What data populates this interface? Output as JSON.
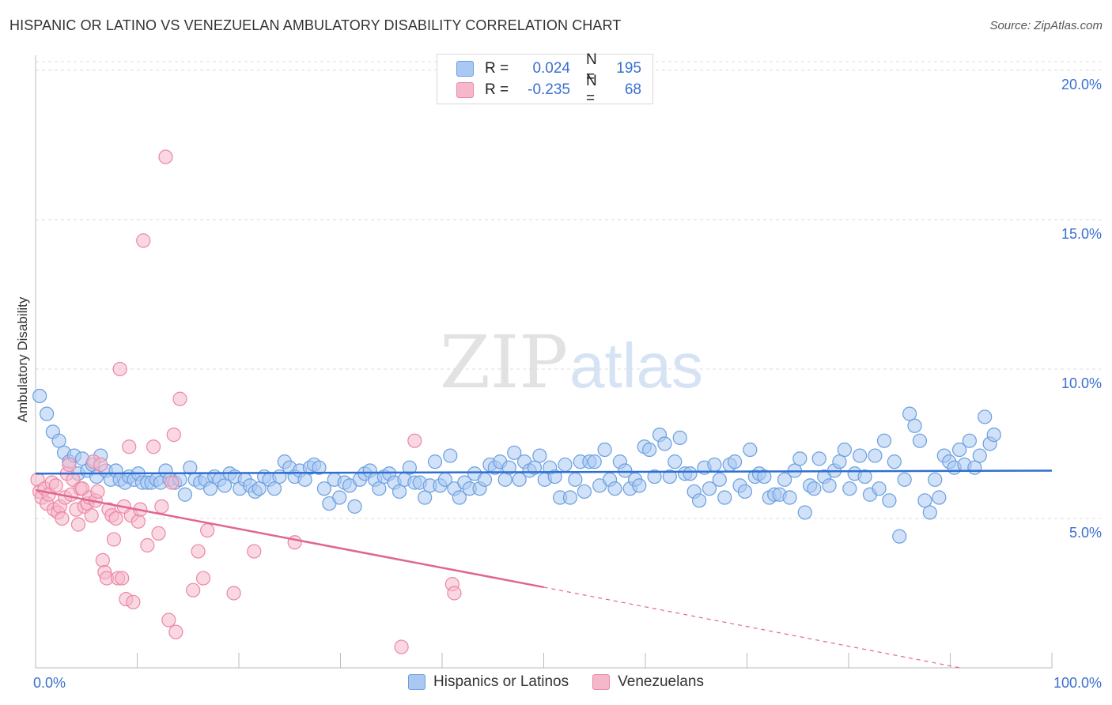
{
  "title": "HISPANIC OR LATINO VS VENEZUELAN AMBULATORY DISABILITY CORRELATION CHART",
  "source": "Source: ZipAtlas.com",
  "watermark": {
    "zip": "ZIP",
    "atlas": "atlas"
  },
  "legend": {
    "rows": [
      {
        "r_label": "R =",
        "r_value": "0.024",
        "n_label": "N =",
        "n_value": "195",
        "color": "#aac8f2"
      },
      {
        "r_label": "R =",
        "r_value": "-0.235",
        "n_label": "N =",
        "n_value": "68",
        "color": "#f5b8cb"
      }
    ]
  },
  "bottom_legend": [
    {
      "label": "Hispanics or Latinos",
      "color": "#aac8f2"
    },
    {
      "label": "Venezuelans",
      "color": "#f5b8cb"
    }
  ],
  "chart_data": {
    "type": "scatter",
    "title": "HISPANIC OR LATINO VS VENEZUELAN AMBULATORY DISABILITY CORRELATION CHART",
    "xlabel": "",
    "ylabel": "Ambulatory Disability",
    "xlim": [
      0,
      100
    ],
    "ylim": [
      0,
      20.5
    ],
    "x_tick_labels": [
      "0.0%",
      "100.0%"
    ],
    "y_ticks": [
      5,
      10,
      15,
      20
    ],
    "y_tick_labels": [
      "5.0%",
      "10.0%",
      "15.0%",
      "20.0%"
    ],
    "grid": "horizontal dashed",
    "legend_position": "top-center",
    "series": [
      {
        "name": "Hispanics or Latinos",
        "color": "#6a9fe0",
        "fill": "#aac8f2",
        "trend": {
          "x": [
            0,
            100
          ],
          "y": [
            6.5,
            6.6
          ],
          "style": "solid",
          "color": "#2f6fd0"
        },
        "points": [
          [
            0.4,
            9.1
          ],
          [
            1.1,
            8.5
          ],
          [
            1.7,
            7.9
          ],
          [
            2.3,
            7.6
          ],
          [
            2.8,
            7.2
          ],
          [
            3.3,
            6.9
          ],
          [
            3.8,
            7.1
          ],
          [
            4.2,
            6.5
          ],
          [
            4.6,
            7.0
          ],
          [
            5.1,
            6.6
          ],
          [
            5.6,
            6.8
          ],
          [
            6.0,
            6.4
          ],
          [
            6.4,
            7.1
          ],
          [
            6.9,
            6.6
          ],
          [
            7.4,
            6.3
          ],
          [
            7.9,
            6.6
          ],
          [
            8.3,
            6.3
          ],
          [
            8.8,
            6.2
          ],
          [
            9.2,
            6.4
          ],
          [
            9.7,
            6.3
          ],
          [
            10.1,
            6.5
          ],
          [
            10.5,
            6.2
          ],
          [
            11.0,
            6.2
          ],
          [
            11.4,
            6.2
          ],
          [
            11.9,
            6.3
          ],
          [
            12.3,
            6.2
          ],
          [
            12.8,
            6.6
          ],
          [
            13.2,
            6.3
          ],
          [
            13.7,
            6.2
          ],
          [
            14.2,
            6.3
          ],
          [
            14.7,
            5.8
          ],
          [
            15.2,
            6.7
          ],
          [
            15.7,
            6.3
          ],
          [
            16.2,
            6.2
          ],
          [
            16.7,
            6.3
          ],
          [
            17.2,
            6.0
          ],
          [
            17.6,
            6.4
          ],
          [
            18.1,
            6.3
          ],
          [
            18.6,
            6.1
          ],
          [
            19.1,
            6.5
          ],
          [
            19.6,
            6.4
          ],
          [
            20.1,
            6.0
          ],
          [
            20.6,
            6.3
          ],
          [
            21.1,
            6.1
          ],
          [
            21.6,
            5.9
          ],
          [
            22.0,
            6.0
          ],
          [
            22.5,
            6.4
          ],
          [
            23.0,
            6.3
          ],
          [
            23.5,
            6.0
          ],
          [
            24.0,
            6.4
          ],
          [
            24.5,
            6.9
          ],
          [
            25.0,
            6.7
          ],
          [
            25.5,
            6.4
          ],
          [
            26.0,
            6.6
          ],
          [
            26.5,
            6.3
          ],
          [
            27.0,
            6.7
          ],
          [
            27.4,
            6.8
          ],
          [
            27.9,
            6.7
          ],
          [
            28.4,
            6.0
          ],
          [
            28.9,
            5.5
          ],
          [
            29.4,
            6.3
          ],
          [
            29.9,
            5.7
          ],
          [
            30.4,
            6.2
          ],
          [
            30.9,
            6.1
          ],
          [
            31.4,
            5.4
          ],
          [
            31.9,
            6.3
          ],
          [
            32.4,
            6.5
          ],
          [
            32.9,
            6.6
          ],
          [
            33.4,
            6.3
          ],
          [
            33.8,
            6.0
          ],
          [
            34.3,
            6.4
          ],
          [
            34.8,
            6.5
          ],
          [
            35.3,
            6.2
          ],
          [
            35.8,
            5.9
          ],
          [
            36.3,
            6.3
          ],
          [
            36.8,
            6.7
          ],
          [
            37.3,
            6.2
          ],
          [
            37.8,
            6.2
          ],
          [
            38.3,
            5.7
          ],
          [
            38.8,
            6.1
          ],
          [
            39.3,
            6.9
          ],
          [
            39.8,
            6.1
          ],
          [
            40.3,
            6.3
          ],
          [
            40.8,
            7.1
          ],
          [
            41.2,
            6.0
          ],
          [
            41.7,
            5.7
          ],
          [
            42.2,
            6.2
          ],
          [
            42.7,
            6.0
          ],
          [
            43.2,
            6.5
          ],
          [
            43.7,
            6.0
          ],
          [
            44.2,
            6.3
          ],
          [
            44.7,
            6.8
          ],
          [
            45.2,
            6.7
          ],
          [
            45.7,
            6.9
          ],
          [
            46.2,
            6.3
          ],
          [
            46.6,
            6.7
          ],
          [
            47.1,
            7.2
          ],
          [
            47.6,
            6.3
          ],
          [
            48.1,
            6.9
          ],
          [
            48.6,
            6.6
          ],
          [
            49.1,
            6.7
          ],
          [
            49.6,
            7.1
          ],
          [
            50.1,
            6.3
          ],
          [
            50.6,
            6.7
          ],
          [
            51.1,
            6.4
          ],
          [
            51.6,
            5.7
          ],
          [
            52.1,
            6.8
          ],
          [
            52.6,
            5.7
          ],
          [
            53.1,
            6.3
          ],
          [
            53.6,
            6.9
          ],
          [
            54.0,
            5.9
          ],
          [
            54.5,
            6.9
          ],
          [
            55.0,
            6.9
          ],
          [
            55.5,
            6.1
          ],
          [
            56.0,
            7.3
          ],
          [
            56.5,
            6.3
          ],
          [
            57.0,
            6.0
          ],
          [
            57.5,
            6.9
          ],
          [
            58.0,
            6.6
          ],
          [
            58.5,
            6.0
          ],
          [
            59.0,
            6.3
          ],
          [
            59.4,
            6.1
          ],
          [
            59.9,
            7.4
          ],
          [
            60.4,
            7.3
          ],
          [
            60.9,
            6.4
          ],
          [
            61.4,
            7.8
          ],
          [
            61.9,
            7.5
          ],
          [
            62.4,
            6.4
          ],
          [
            62.9,
            6.9
          ],
          [
            63.4,
            7.7
          ],
          [
            63.9,
            6.5
          ],
          [
            64.4,
            6.5
          ],
          [
            64.8,
            5.9
          ],
          [
            65.3,
            5.6
          ],
          [
            65.8,
            6.7
          ],
          [
            66.3,
            6.0
          ],
          [
            66.8,
            6.8
          ],
          [
            67.3,
            6.3
          ],
          [
            67.8,
            5.7
          ],
          [
            68.3,
            6.8
          ],
          [
            68.8,
            6.9
          ],
          [
            69.3,
            6.1
          ],
          [
            69.8,
            5.9
          ],
          [
            70.3,
            7.3
          ],
          [
            70.8,
            6.4
          ],
          [
            71.2,
            6.5
          ],
          [
            71.7,
            6.4
          ],
          [
            72.2,
            5.7
          ],
          [
            72.7,
            5.8
          ],
          [
            73.2,
            5.8
          ],
          [
            73.7,
            6.3
          ],
          [
            74.2,
            5.7
          ],
          [
            74.7,
            6.6
          ],
          [
            75.2,
            7.0
          ],
          [
            75.7,
            5.2
          ],
          [
            76.2,
            6.1
          ],
          [
            76.6,
            6.0
          ],
          [
            77.1,
            7.0
          ],
          [
            77.6,
            6.4
          ],
          [
            78.1,
            6.1
          ],
          [
            78.6,
            6.6
          ],
          [
            79.1,
            6.9
          ],
          [
            79.6,
            7.3
          ],
          [
            80.1,
            6.0
          ],
          [
            80.6,
            6.5
          ],
          [
            81.1,
            7.1
          ],
          [
            81.6,
            6.4
          ],
          [
            82.1,
            5.8
          ],
          [
            82.6,
            7.1
          ],
          [
            83.0,
            6.0
          ],
          [
            83.5,
            7.6
          ],
          [
            84.0,
            5.6
          ],
          [
            84.5,
            6.9
          ],
          [
            85.0,
            4.4
          ],
          [
            85.5,
            6.3
          ],
          [
            86.0,
            8.5
          ],
          [
            86.5,
            8.1
          ],
          [
            87.0,
            7.6
          ],
          [
            87.5,
            5.6
          ],
          [
            88.0,
            5.2
          ],
          [
            88.5,
            6.3
          ],
          [
            88.9,
            5.7
          ],
          [
            89.4,
            7.1
          ],
          [
            89.9,
            6.9
          ],
          [
            90.4,
            6.7
          ],
          [
            90.9,
            7.3
          ],
          [
            91.4,
            6.8
          ],
          [
            91.9,
            7.6
          ],
          [
            92.4,
            6.7
          ],
          [
            92.9,
            7.1
          ],
          [
            93.4,
            8.4
          ],
          [
            93.9,
            7.5
          ],
          [
            94.3,
            7.8
          ]
        ]
      },
      {
        "name": "Venezuelans",
        "color": "#ec86a6",
        "fill": "#f5b8cb",
        "trend": {
          "x": [
            0,
            50,
            91
          ],
          "y": [
            5.95,
            2.7,
            0.0
          ],
          "style": "solid-then-dashed",
          "color": "#e06690",
          "dash_from_x": 50
        },
        "points": [
          [
            0.2,
            6.3
          ],
          [
            0.4,
            5.9
          ],
          [
            0.6,
            5.7
          ],
          [
            0.9,
            6.0
          ],
          [
            1.1,
            5.5
          ],
          [
            1.3,
            5.8
          ],
          [
            1.6,
            6.2
          ],
          [
            1.8,
            5.3
          ],
          [
            2.0,
            6.1
          ],
          [
            2.2,
            5.2
          ],
          [
            2.4,
            5.4
          ],
          [
            2.6,
            5.0
          ],
          [
            2.9,
            5.7
          ],
          [
            3.1,
            6.5
          ],
          [
            3.3,
            6.8
          ],
          [
            3.5,
            5.8
          ],
          [
            3.7,
            6.3
          ],
          [
            4.0,
            5.3
          ],
          [
            4.2,
            4.8
          ],
          [
            4.4,
            6.0
          ],
          [
            4.6,
            6.0
          ],
          [
            4.8,
            5.4
          ],
          [
            5.1,
            5.5
          ],
          [
            5.3,
            5.7
          ],
          [
            5.5,
            5.1
          ],
          [
            5.7,
            6.9
          ],
          [
            5.9,
            5.6
          ],
          [
            6.1,
            5.9
          ],
          [
            6.4,
            6.8
          ],
          [
            6.6,
            3.6
          ],
          [
            6.8,
            3.2
          ],
          [
            7.0,
            3.0
          ],
          [
            7.2,
            5.3
          ],
          [
            7.5,
            5.1
          ],
          [
            7.7,
            4.3
          ],
          [
            7.9,
            5.0
          ],
          [
            8.1,
            3.0
          ],
          [
            8.3,
            10.0
          ],
          [
            8.5,
            3.0
          ],
          [
            8.7,
            5.4
          ],
          [
            8.9,
            2.3
          ],
          [
            9.2,
            7.4
          ],
          [
            9.4,
            5.1
          ],
          [
            9.6,
            2.2
          ],
          [
            10.1,
            4.9
          ],
          [
            10.3,
            5.3
          ],
          [
            10.6,
            14.3
          ],
          [
            11.0,
            4.1
          ],
          [
            11.6,
            7.4
          ],
          [
            12.1,
            4.5
          ],
          [
            12.4,
            5.4
          ],
          [
            12.8,
            17.1
          ],
          [
            13.1,
            1.6
          ],
          [
            13.6,
            7.8
          ],
          [
            13.8,
            1.2
          ],
          [
            14.2,
            9.0
          ],
          [
            15.5,
            2.6
          ],
          [
            16.0,
            3.9
          ],
          [
            16.5,
            3.0
          ],
          [
            16.9,
            4.6
          ],
          [
            19.5,
            2.5
          ],
          [
            21.5,
            3.9
          ],
          [
            25.5,
            4.2
          ],
          [
            36.0,
            0.7
          ],
          [
            37.3,
            7.6
          ],
          [
            41.0,
            2.8
          ],
          [
            41.2,
            2.5
          ],
          [
            13.4,
            6.2
          ]
        ]
      }
    ]
  }
}
